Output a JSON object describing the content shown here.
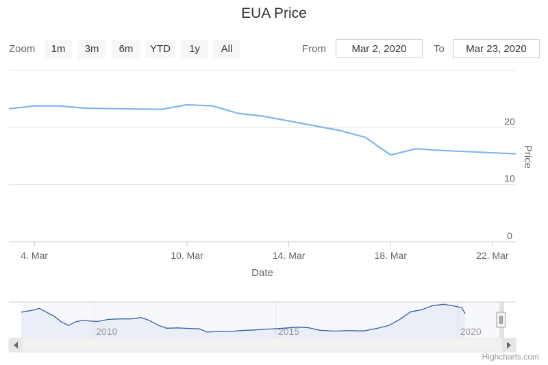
{
  "chart_data": {
    "type": "line",
    "title": "EUA Price",
    "xlabel": "Date",
    "ylabel": "Price",
    "ylim": [
      0,
      30
    ],
    "xlim": [
      "2020-03-03",
      "2020-03-23"
    ],
    "x_ticks": [
      "4. Mar",
      "10. Mar",
      "14. Mar",
      "18. Mar",
      "22. Mar"
    ],
    "y_ticks": [
      "0",
      "10",
      "20"
    ],
    "grid": true,
    "y_axis_position": "right",
    "series": [
      {
        "color": "#7cb5ec",
        "x": [
          "2020-03-03",
          "2020-03-04",
          "2020-03-05",
          "2020-03-06",
          "2020-03-09",
          "2020-03-10",
          "2020-03-11",
          "2020-03-12",
          "2020-03-13",
          "2020-03-16",
          "2020-03-17",
          "2020-03-18",
          "2020-03-19",
          "2020-03-20",
          "2020-03-23"
        ],
        "y": [
          23.3,
          23.8,
          23.8,
          23.4,
          23.2,
          24.0,
          23.8,
          22.5,
          22.0,
          19.5,
          18.3,
          15.2,
          16.3,
          16.0,
          15.4
        ]
      }
    ]
  },
  "zoom": {
    "label": "Zoom",
    "buttons": [
      "1m",
      "3m",
      "6m",
      "YTD",
      "1y",
      "All"
    ]
  },
  "range": {
    "from_label": "From",
    "from_value": "Mar 2, 2020",
    "to_label": "To",
    "to_value": "Mar 23, 2020"
  },
  "navigator": {
    "year_labels": [
      "2010",
      "2015",
      "2020"
    ],
    "series_color": "#335cad",
    "years": [
      2008,
      2021.25
    ],
    "points": [
      [
        2008.0,
        20.5
      ],
      [
        2008.3,
        22.0
      ],
      [
        2008.5,
        23.6
      ],
      [
        2008.7,
        20.3
      ],
      [
        2008.9,
        17.2
      ],
      [
        2009.1,
        12.5
      ],
      [
        2009.3,
        9.5
      ],
      [
        2009.5,
        12.5
      ],
      [
        2009.7,
        13.8
      ],
      [
        2009.9,
        13.1
      ],
      [
        2010.1,
        12.8
      ],
      [
        2010.4,
        14.5
      ],
      [
        2010.7,
        14.9
      ],
      [
        2011.0,
        14.9
      ],
      [
        2011.3,
        16.0
      ],
      [
        2011.5,
        13.8
      ],
      [
        2011.8,
        9.2
      ],
      [
        2012.0,
        7.2
      ],
      [
        2012.3,
        7.5
      ],
      [
        2012.6,
        7.0
      ],
      [
        2012.9,
        6.7
      ],
      [
        2013.1,
        4.0
      ],
      [
        2013.4,
        4.5
      ],
      [
        2013.8,
        4.6
      ],
      [
        2014.0,
        5.2
      ],
      [
        2014.4,
        5.8
      ],
      [
        2014.8,
        6.5
      ],
      [
        2015.2,
        7.2
      ],
      [
        2015.6,
        8.1
      ],
      [
        2015.9,
        7.6
      ],
      [
        2016.2,
        5.5
      ],
      [
        2016.6,
        4.8
      ],
      [
        2017.0,
        5.2
      ],
      [
        2017.4,
        4.9
      ],
      [
        2017.8,
        7.2
      ],
      [
        2018.1,
        9.5
      ],
      [
        2018.4,
        14.5
      ],
      [
        2018.7,
        20.8
      ],
      [
        2019.0,
        22.5
      ],
      [
        2019.3,
        25.8
      ],
      [
        2019.6,
        27.0
      ],
      [
        2019.9,
        25.5
      ],
      [
        2020.1,
        24.2
      ],
      [
        2020.2,
        19.2
      ]
    ]
  }
}
